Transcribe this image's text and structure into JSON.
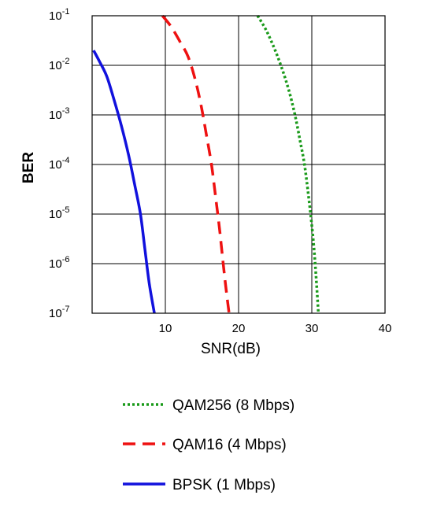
{
  "chart_data": {
    "type": "line",
    "xlabel": "SNR(dB)",
    "ylabel": "BER",
    "xlim": [
      0,
      40
    ],
    "ylim": [
      1e-07,
      0.1
    ],
    "yscale": "log",
    "grid": true,
    "legend_position": "bottom",
    "x_ticks": [
      {
        "value": 10,
        "label": "10"
      },
      {
        "value": 20,
        "label": "20"
      },
      {
        "value": 30,
        "label": "30"
      },
      {
        "value": 40,
        "label": "40"
      }
    ],
    "y_ticks": [
      {
        "value": 0.1,
        "base": "10",
        "exp": "-1"
      },
      {
        "value": 0.01,
        "base": "10",
        "exp": "-2"
      },
      {
        "value": 0.001,
        "base": "10",
        "exp": "-3"
      },
      {
        "value": 0.0001,
        "base": "10",
        "exp": "-4"
      },
      {
        "value": 1e-05,
        "base": "10",
        "exp": "-5"
      },
      {
        "value": 1e-06,
        "base": "10",
        "exp": "-6"
      },
      {
        "value": 1e-07,
        "base": "10",
        "exp": "-7"
      }
    ],
    "series": [
      {
        "name": "QAM256 (8 Mbps)",
        "color": "#1a9a1a",
        "style": "dotted",
        "points": [
          [
            22.6,
            0.1
          ],
          [
            23.8,
            0.05
          ],
          [
            25.0,
            0.02
          ],
          [
            26.0,
            0.008
          ],
          [
            26.9,
            0.003
          ],
          [
            27.7,
            0.001
          ],
          [
            28.4,
            0.0003
          ],
          [
            29.0,
            0.0001
          ],
          [
            29.6,
            2e-05
          ],
          [
            30.2,
            3e-06
          ],
          [
            30.6,
            5e-07
          ],
          [
            30.9,
            1e-07
          ]
        ]
      },
      {
        "name": "QAM16 (4 Mbps)",
        "color": "#ee1111",
        "style": "dashed",
        "points": [
          [
            9.6,
            0.1
          ],
          [
            10.8,
            0.06
          ],
          [
            12.0,
            0.03
          ],
          [
            13.1,
            0.015
          ],
          [
            14.1,
            0.005
          ],
          [
            14.9,
            0.0015
          ],
          [
            15.6,
            0.0004
          ],
          [
            16.3,
            0.0001
          ],
          [
            16.9,
            2e-05
          ],
          [
            17.4,
            5e-06
          ],
          [
            17.9,
            1e-06
          ],
          [
            18.3,
            3e-07
          ],
          [
            18.7,
            1e-07
          ]
        ]
      },
      {
        "name": "BPSK (1 Mbps)",
        "color": "#1111dd",
        "style": "solid",
        "points": [
          [
            0.2,
            0.02
          ],
          [
            1.0,
            0.012
          ],
          [
            2.0,
            0.006
          ],
          [
            3.0,
            0.002
          ],
          [
            4.0,
            0.0006
          ],
          [
            5.0,
            0.00015
          ],
          [
            5.8,
            4e-05
          ],
          [
            6.6,
            1e-05
          ],
          [
            7.2,
            2e-06
          ],
          [
            7.8,
            4e-07
          ],
          [
            8.5,
            1e-07
          ]
        ]
      }
    ]
  }
}
